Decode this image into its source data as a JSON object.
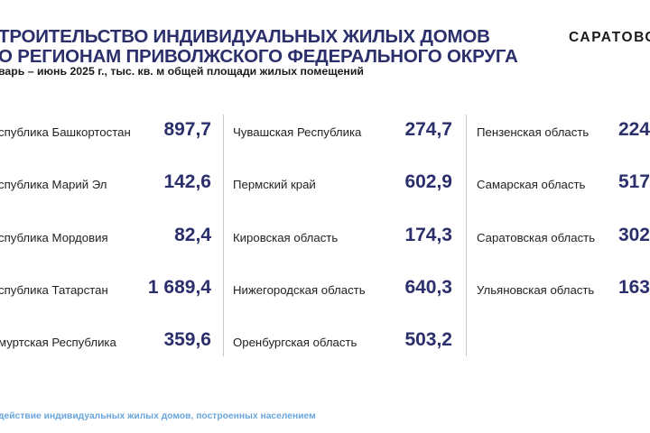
{
  "header": {
    "title_line1": "ТРОИТЕЛЬСТВО ИНДИВИДУАЛЬНЫХ ЖИЛЫХ ДОМОВ",
    "title_line2": "О РЕГИОНАМ ПРИВОЛЖСКОГО ФЕДЕРАЛЬНОГО ОКРУГА",
    "subtitle": "варь – июнь 2025 г., тыс. кв. м общей площади жилых помещений",
    "brand": "САРАТОВС"
  },
  "columns": [
    {
      "rows": [
        {
          "label": "спублика Башкортостан",
          "value": "897,7"
        },
        {
          "label": "спублика Марий Эл",
          "value": "142,6"
        },
        {
          "label": "спублика Мордовия",
          "value": "82,4"
        },
        {
          "label": "спублика Татарстан",
          "value": "1 689,4"
        },
        {
          "label": "муртская Республика",
          "value": "359,6"
        }
      ]
    },
    {
      "rows": [
        {
          "label": "Чувашская Республика",
          "value": "274,7"
        },
        {
          "label": "Пермский край",
          "value": "602,9"
        },
        {
          "label": "Кировская область",
          "value": "174,3"
        },
        {
          "label": "Нижегородская область",
          "value": "640,3"
        },
        {
          "label": "Оренбургская область",
          "value": "503,2"
        }
      ]
    },
    {
      "rows": [
        {
          "label": "Пензенская область",
          "value": "224"
        },
        {
          "label": "Самарская область",
          "value": "517"
        },
        {
          "label": "Саратовская область",
          "value": "302"
        },
        {
          "label": "Ульяновская область",
          "value": "163"
        }
      ]
    }
  ],
  "footnote": "действие индивидуальных жилых домов, построенных населением"
}
